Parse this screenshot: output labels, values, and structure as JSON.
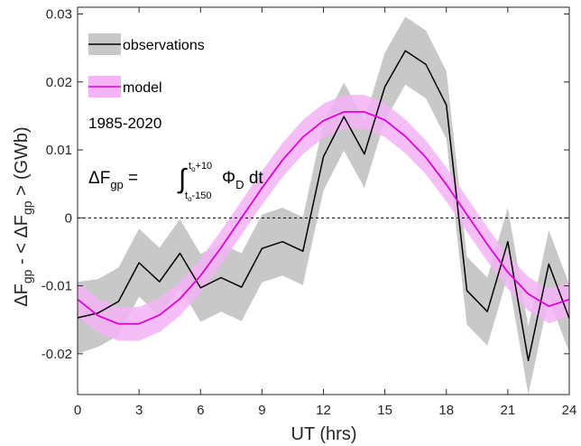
{
  "chart_data": {
    "type": "line",
    "xlabel": "UT   (hrs)",
    "ylabel": {
      "delta": "Δ",
      "F": "F",
      "gp_sub": "gp",
      "minus_lt": "  - < ΔF",
      "gp_sub2": "gp",
      "gt": " >",
      "unit": "(GWb)"
    },
    "xlim": [
      0,
      24
    ],
    "ylim": [
      -0.026,
      0.031
    ],
    "xticks": [
      0,
      3,
      6,
      9,
      12,
      15,
      18,
      21,
      24
    ],
    "xtick_labels": [
      "0",
      "3",
      "6",
      "9",
      "12",
      "15",
      "18",
      "21",
      "24"
    ],
    "yticks": [
      -0.02,
      -0.01,
      0,
      0.01,
      0.02,
      0.03
    ],
    "ytick_labels": [
      "-0.02",
      "-0.01",
      "0",
      "0.01",
      "0.02",
      "0.03"
    ],
    "grid": false,
    "legend_position": "top-left",
    "legend": [
      {
        "label": "observations",
        "line_color": "#000000",
        "band_color": "#c8c8c8"
      },
      {
        "label": "model",
        "line_color": "#e000e0",
        "band_color": "#f4b3f4"
      }
    ],
    "annotation_period": "1985-2020",
    "formula": {
      "lhs_delta": "ΔF",
      "lhs_sub": "gp",
      "equals": " = ",
      "integral": "∫",
      "upper_main": "t",
      "upper_sub": "o",
      "upper_rest": "+10",
      "lower_main": "t",
      "lower_sub": "o",
      "lower_rest": "-150",
      "phi": "Φ",
      "phi_sub": "D",
      "dt": " dt"
    },
    "zero_line": {
      "y": 0,
      "style": "dashed"
    },
    "series": [
      {
        "name": "observations",
        "x": [
          0,
          1,
          2,
          3,
          4,
          5,
          6,
          7,
          8,
          9,
          10,
          11,
          12,
          13,
          14,
          15,
          16,
          17,
          18,
          19,
          20,
          21,
          22,
          23,
          24
        ],
        "values": [
          -0.0147,
          -0.014,
          -0.0123,
          -0.0066,
          -0.0094,
          -0.0052,
          -0.0103,
          -0.0088,
          -0.0102,
          -0.0045,
          -0.0035,
          -0.0049,
          0.009,
          0.0149,
          0.0094,
          0.0193,
          0.0246,
          0.0226,
          0.0166,
          -0.0107,
          -0.0138,
          -0.0035,
          -0.021,
          -0.0068,
          -0.0148
        ],
        "band_upper": [
          -0.0094,
          -0.009,
          -0.0073,
          -0.0016,
          -0.0044,
          -0.0002,
          -0.0053,
          -0.0038,
          -0.0052,
          0.0005,
          0.0015,
          0.0001,
          0.014,
          0.0199,
          0.0144,
          0.0243,
          0.0296,
          0.0276,
          0.0216,
          -0.0057,
          -0.0088,
          0.0015,
          -0.016,
          -0.0018,
          -0.0098
        ],
        "band_lower": [
          -0.02,
          -0.019,
          -0.0173,
          -0.0116,
          -0.0144,
          -0.0102,
          -0.0153,
          -0.0138,
          -0.0152,
          -0.0095,
          -0.0085,
          -0.0099,
          0.004,
          0.0099,
          0.0044,
          0.0143,
          0.0196,
          0.0176,
          0.0116,
          -0.0157,
          -0.0188,
          -0.0085,
          -0.026,
          -0.0118,
          -0.0198
        ],
        "color": "#000000"
      },
      {
        "name": "model",
        "x": [
          0,
          1,
          2,
          3,
          4,
          5,
          6,
          7,
          8,
          9,
          10,
          11,
          12,
          13,
          14,
          15,
          16,
          17,
          18,
          19,
          20,
          21,
          22,
          23,
          24
        ],
        "values": [
          -0.012,
          -0.0144,
          -0.0156,
          -0.0156,
          -0.0143,
          -0.0119,
          -0.0085,
          -0.0044,
          0.0,
          0.0044,
          0.0085,
          0.0119,
          0.0143,
          0.0156,
          0.0156,
          0.0144,
          0.012,
          0.0089,
          0.0049,
          0.0005,
          -0.0039,
          -0.008,
          -0.0112,
          -0.013,
          -0.012
        ],
        "band_upper": [
          -0.0095,
          -0.0119,
          -0.0131,
          -0.0131,
          -0.0118,
          -0.0094,
          -0.006,
          -0.0019,
          0.0025,
          0.0069,
          0.011,
          0.0144,
          0.0168,
          0.0181,
          0.0181,
          0.0169,
          0.0145,
          0.0114,
          0.0074,
          0.003,
          -0.0014,
          -0.0055,
          -0.0087,
          -0.0105,
          -0.0095
        ],
        "band_lower": [
          -0.0145,
          -0.0169,
          -0.0181,
          -0.0181,
          -0.0168,
          -0.0144,
          -0.011,
          -0.0069,
          -0.0025,
          0.0019,
          0.006,
          0.0094,
          0.0118,
          0.0131,
          0.0131,
          0.0119,
          0.0095,
          0.0064,
          0.0024,
          -0.002,
          -0.0064,
          -0.0105,
          -0.0137,
          -0.0155,
          -0.0145
        ],
        "color": "#e000e0"
      }
    ]
  }
}
